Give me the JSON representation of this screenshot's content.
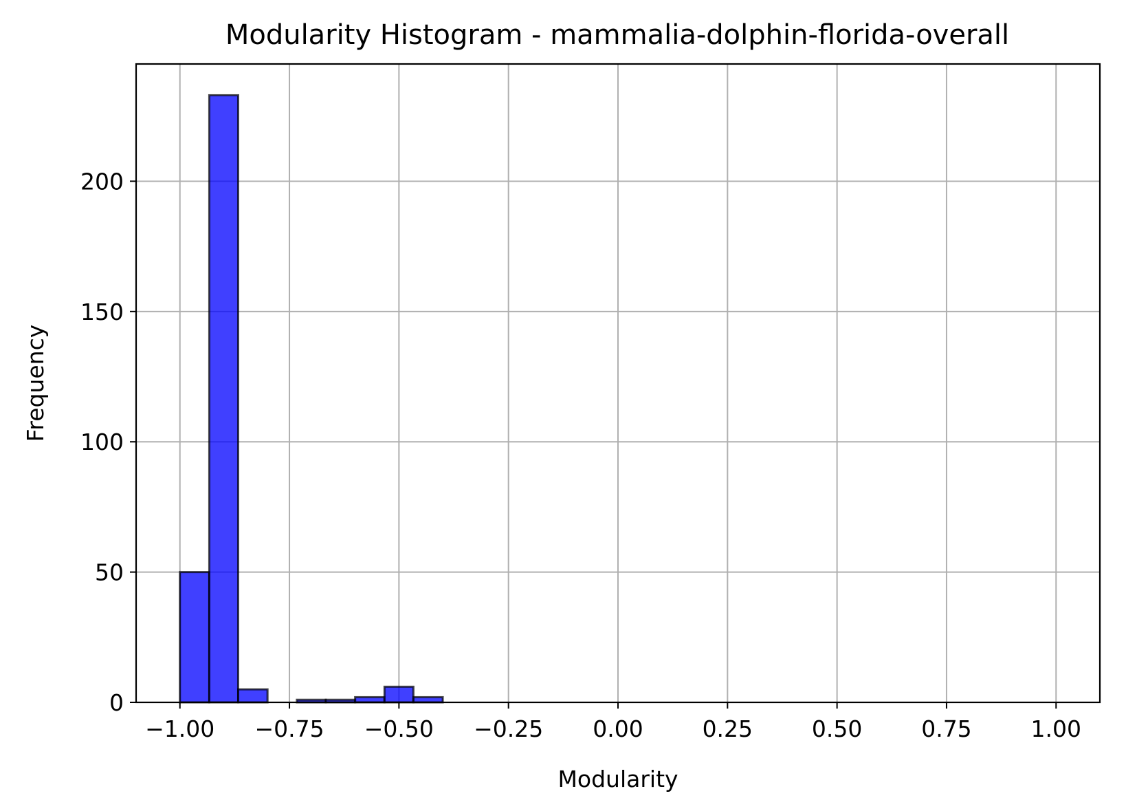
{
  "chart_data": {
    "type": "bar",
    "title": "Modularity Histogram - mammalia-dolphin-florida-overall",
    "xlabel": "Modularity",
    "ylabel": "Frequency",
    "xlim": [
      -1.1,
      1.1
    ],
    "ylim": [
      0,
      245
    ],
    "x_ticks": [
      -1.0,
      -0.75,
      -0.5,
      -0.25,
      0.0,
      0.25,
      0.5,
      0.75,
      1.0
    ],
    "x_tick_labels": [
      "−1.00",
      "−0.75",
      "−0.50",
      "−0.25",
      "0.00",
      "0.25",
      "0.50",
      "0.75",
      "1.00"
    ],
    "y_ticks": [
      0,
      50,
      100,
      150,
      200
    ],
    "y_tick_labels": [
      "0",
      "50",
      "100",
      "150",
      "200"
    ],
    "bin_edges": [
      -1.0,
      -0.933,
      -0.867,
      -0.8,
      -0.733,
      -0.667,
      -0.6,
      -0.533,
      -0.467,
      -0.4,
      -0.333,
      -0.267,
      -0.2,
      -0.133,
      -0.067,
      0.0,
      0.067,
      0.133,
      0.2,
      0.267,
      0.333,
      0.4,
      0.467,
      0.533,
      0.6,
      0.667,
      0.733,
      0.8,
      0.867,
      0.933,
      1.0
    ],
    "values": [
      50,
      233,
      5,
      0,
      1,
      1,
      2,
      6,
      2,
      0,
      0,
      0,
      0,
      0,
      0,
      0,
      0,
      0,
      0,
      0,
      0,
      0,
      0,
      0,
      0,
      0,
      0,
      0,
      0,
      0
    ],
    "grid": true,
    "colors": {
      "bar_fill": "#0000ff",
      "bar_edge": "#000000",
      "grid": "#b0b0b0"
    }
  }
}
